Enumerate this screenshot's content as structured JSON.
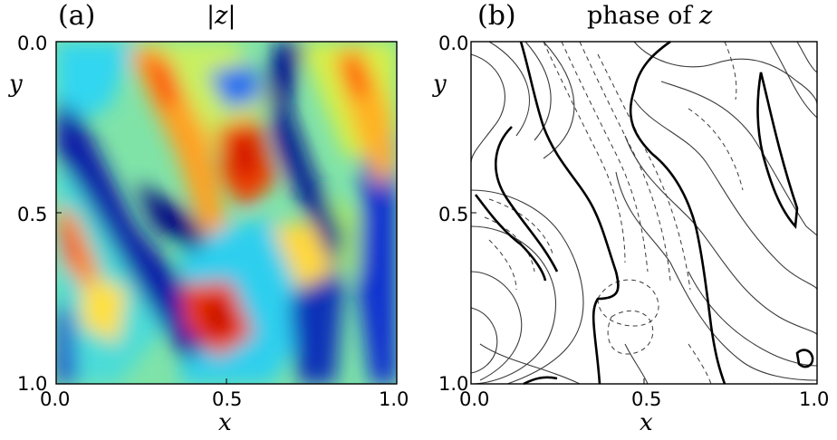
{
  "figure": {
    "panels": [
      {
        "letter": "(a)",
        "title_text": "|z|",
        "xlabel": "x",
        "ylabel": "y",
        "xticks": [
          "0.0",
          "0.5",
          "1.0"
        ],
        "yticks": [
          "0.0",
          "0.5",
          "1.0"
        ]
      },
      {
        "letter": "(b)",
        "title_prefix": "phase of ",
        "title_var": "z",
        "xlabel": "x",
        "ylabel": "y",
        "xticks": [
          "0.0",
          "0.5",
          "1.0"
        ],
        "yticks": [
          "0.0",
          "0.5",
          "1.0"
        ]
      }
    ]
  },
  "chart_data": [
    {
      "type": "heatmap",
      "title": "|z|",
      "xlabel": "x",
      "ylabel": "y",
      "xlim": [
        0.0,
        1.0
      ],
      "ylim": [
        1.0,
        0.0
      ],
      "colormap": "jet",
      "colors": [
        "#00008f",
        "#0050ff",
        "#00d8ff",
        "#7dff7a",
        "#ffe600",
        "#ff6a00",
        "#d00000"
      ],
      "grid": false,
      "hot_spots": [
        {
          "x": 0.28,
          "y": 0.1
        },
        {
          "x": 0.52,
          "y": 0.34
        },
        {
          "x": 0.45,
          "y": 0.82
        },
        {
          "x": 0.86,
          "y": 0.06
        },
        {
          "x": 0.04,
          "y": 0.62
        }
      ],
      "cold_spots": [
        {
          "x": 0.1,
          "y": 0.35
        },
        {
          "x": 0.27,
          "y": 0.52
        },
        {
          "x": 0.72,
          "y": 0.1
        },
        {
          "x": 0.78,
          "y": 0.35
        },
        {
          "x": 0.73,
          "y": 0.9
        },
        {
          "x": 0.95,
          "y": 0.72
        }
      ]
    },
    {
      "type": "contour",
      "title": "phase of z",
      "xlabel": "x",
      "ylabel": "y",
      "xlim": [
        0.0,
        1.0
      ],
      "ylim": [
        1.0,
        0.0
      ],
      "line_color": "#333333",
      "line_styles": [
        "solid",
        "dashed"
      ],
      "grid": false
    }
  ]
}
